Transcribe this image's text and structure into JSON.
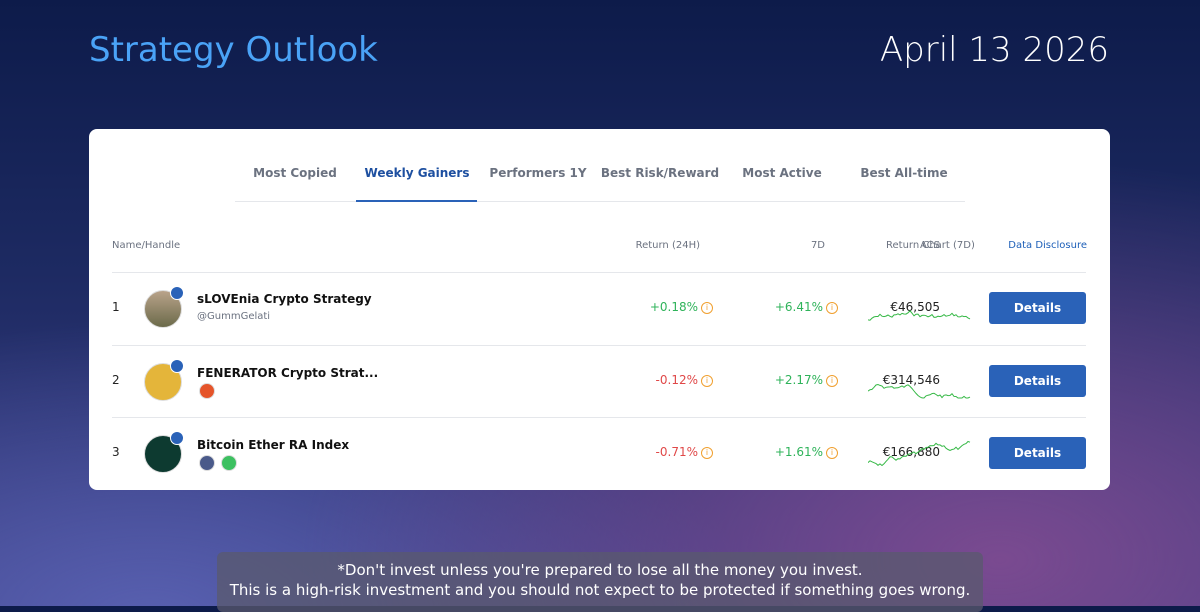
{
  "header": {
    "title": "Strategy Outlook",
    "date": "April 13 2026"
  },
  "tabs": {
    "items": [
      "Most Copied",
      "Weekly Gainers",
      "Performers 1Y",
      "Best Risk/Reward",
      "Most Active",
      "Best All-time"
    ],
    "active": 1
  },
  "table": {
    "columns": [
      "Name/Handle",
      "Return (24H)",
      "7D",
      "ACS",
      "Return Chart (7D)",
      "Data Disclosure"
    ],
    "rows": [
      {
        "rank": "1",
        "name": "sLOVEnia Crypto Strategy",
        "handle": "@GummGelati",
        "return_24h": "+0.18%",
        "return_7d": "+6.41%",
        "acs": "€46,505",
        "action": "Details"
      },
      {
        "rank": "2",
        "name": "FENERATOR Crypto Strat...",
        "return_24h": "-0.12%",
        "return_7d": "+2.17%",
        "acs": "€314,546",
        "action": "Details"
      },
      {
        "rank": "3",
        "name": "Bitcoin Ether RA Index",
        "return_24h": "-0.71%",
        "return_7d": "+1.61%",
        "acs": "€166,880",
        "action": "Details"
      }
    ]
  },
  "disclaimer": {
    "lines": [
      "*Don't invest unless you're prepared to lose all the money you invest.",
      "This is a high-risk investment and you should not expect to be protected if something goes wrong."
    ]
  }
}
